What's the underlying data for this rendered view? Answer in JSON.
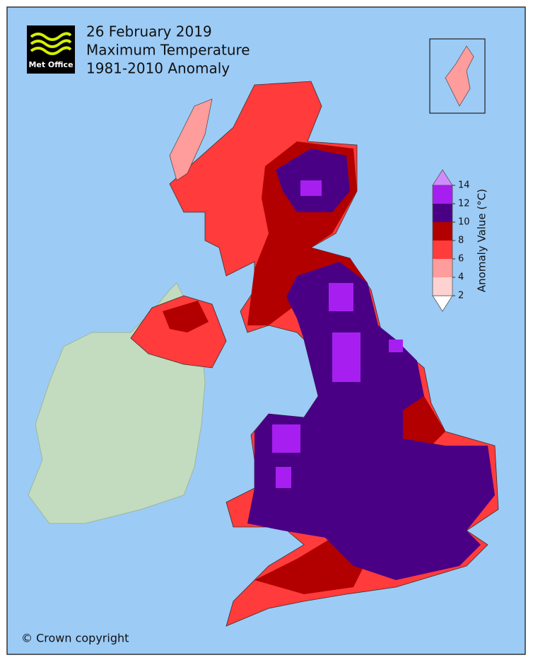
{
  "header": {
    "logo": "Met Office",
    "title_lines": [
      "26 February 2019",
      "Maximum Temperature",
      "1981-2010 Anomaly"
    ]
  },
  "colorbar": {
    "label": "Anomaly Value (°C)",
    "ticks": [
      2,
      4,
      6,
      8,
      10,
      12,
      14
    ],
    "colors": [
      "#ffd2d2",
      "#ff9c9c",
      "#ff3b3b",
      "#b20000",
      "#4a0085",
      "#a61ff0"
    ]
  },
  "footer": {
    "copyright": "© Crown copyright"
  }
}
